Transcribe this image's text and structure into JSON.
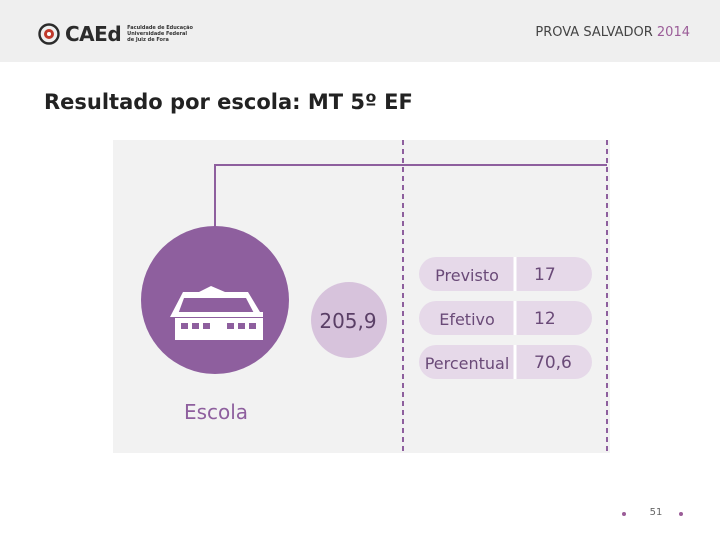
{
  "header": {
    "logo": {
      "name": "CAEd",
      "subtitle_lines": [
        "Faculdade de Educação",
        "Universidade Federal",
        "de Juiz de Fora"
      ]
    },
    "presentation_title": "PROVA SALVADOR",
    "year": "2014"
  },
  "slide": {
    "title": "Resultado por escola: MT 5º EF"
  },
  "infographic": {
    "entity_label": "Escola",
    "proficiency": "205,9",
    "rows": [
      {
        "label": "Previsto",
        "value": "17"
      },
      {
        "label": "Efetivo",
        "value": "12"
      },
      {
        "label": "Percentual",
        "value": "70,6"
      }
    ],
    "colors": {
      "primary": "#8e5f9e",
      "light": "#d7c3dc",
      "pill": "#e6d9e9",
      "text": "#6a4a78"
    }
  },
  "footer": {
    "page_number": "51"
  }
}
